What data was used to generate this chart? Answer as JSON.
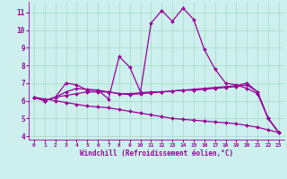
{
  "xlabel": "Windchill (Refroidissement éolien,°C)",
  "bg_color": "#cdf0ee",
  "grid_color": "#aaddcc",
  "line_color": "#990099",
  "xlim": [
    -0.5,
    23.5
  ],
  "ylim": [
    3.8,
    11.6
  ],
  "yticks": [
    4,
    5,
    6,
    7,
    8,
    9,
    10,
    11
  ],
  "xticks": [
    0,
    1,
    2,
    3,
    4,
    5,
    6,
    7,
    8,
    9,
    10,
    11,
    12,
    13,
    14,
    15,
    16,
    17,
    18,
    19,
    20,
    21,
    22,
    23
  ],
  "lines": [
    {
      "x": [
        0,
        1,
        2,
        3,
        4,
        5,
        6,
        7,
        8,
        9,
        10,
        11,
        12,
        13,
        14,
        15,
        16,
        17,
        18,
        19,
        20,
        21,
        22,
        23
      ],
      "y": [
        6.2,
        6.0,
        6.2,
        7.0,
        6.9,
        6.6,
        6.6,
        6.1,
        8.5,
        7.9,
        6.5,
        10.4,
        11.1,
        10.5,
        11.25,
        10.6,
        8.9,
        7.8,
        7.0,
        6.9,
        6.7,
        6.4,
        5.0,
        4.2
      ]
    },
    {
      "x": [
        0,
        1,
        2,
        3,
        4,
        5,
        6,
        7,
        8,
        9,
        10,
        11,
        12,
        13,
        14,
        15,
        16,
        17,
        18,
        19,
        20,
        21,
        22,
        23
      ],
      "y": [
        6.2,
        6.1,
        6.0,
        5.9,
        5.8,
        5.7,
        5.65,
        5.6,
        5.5,
        5.4,
        5.3,
        5.2,
        5.1,
        5.0,
        4.95,
        4.9,
        4.85,
        4.8,
        4.75,
        4.7,
        4.6,
        4.5,
        4.35,
        4.2
      ]
    },
    {
      "x": [
        0,
        1,
        2,
        3,
        4,
        5,
        6,
        7,
        8,
        9,
        10,
        11,
        12,
        13,
        14,
        15,
        16,
        17,
        18,
        19,
        20,
        21,
        22,
        23
      ],
      "y": [
        6.2,
        6.0,
        6.2,
        6.3,
        6.4,
        6.5,
        6.5,
        6.5,
        6.4,
        6.4,
        6.45,
        6.5,
        6.5,
        6.55,
        6.6,
        6.6,
        6.65,
        6.7,
        6.75,
        6.8,
        6.9,
        6.5,
        5.0,
        4.2
      ]
    },
    {
      "x": [
        0,
        1,
        2,
        3,
        4,
        5,
        6,
        7,
        8,
        9,
        10,
        11,
        12,
        13,
        14,
        15,
        16,
        17,
        18,
        19,
        20,
        21,
        22,
        23
      ],
      "y": [
        6.2,
        6.0,
        6.2,
        6.5,
        6.7,
        6.65,
        6.6,
        6.5,
        6.4,
        6.35,
        6.4,
        6.45,
        6.5,
        6.55,
        6.6,
        6.65,
        6.7,
        6.75,
        6.8,
        6.85,
        7.0,
        6.5,
        5.0,
        4.2
      ]
    }
  ]
}
